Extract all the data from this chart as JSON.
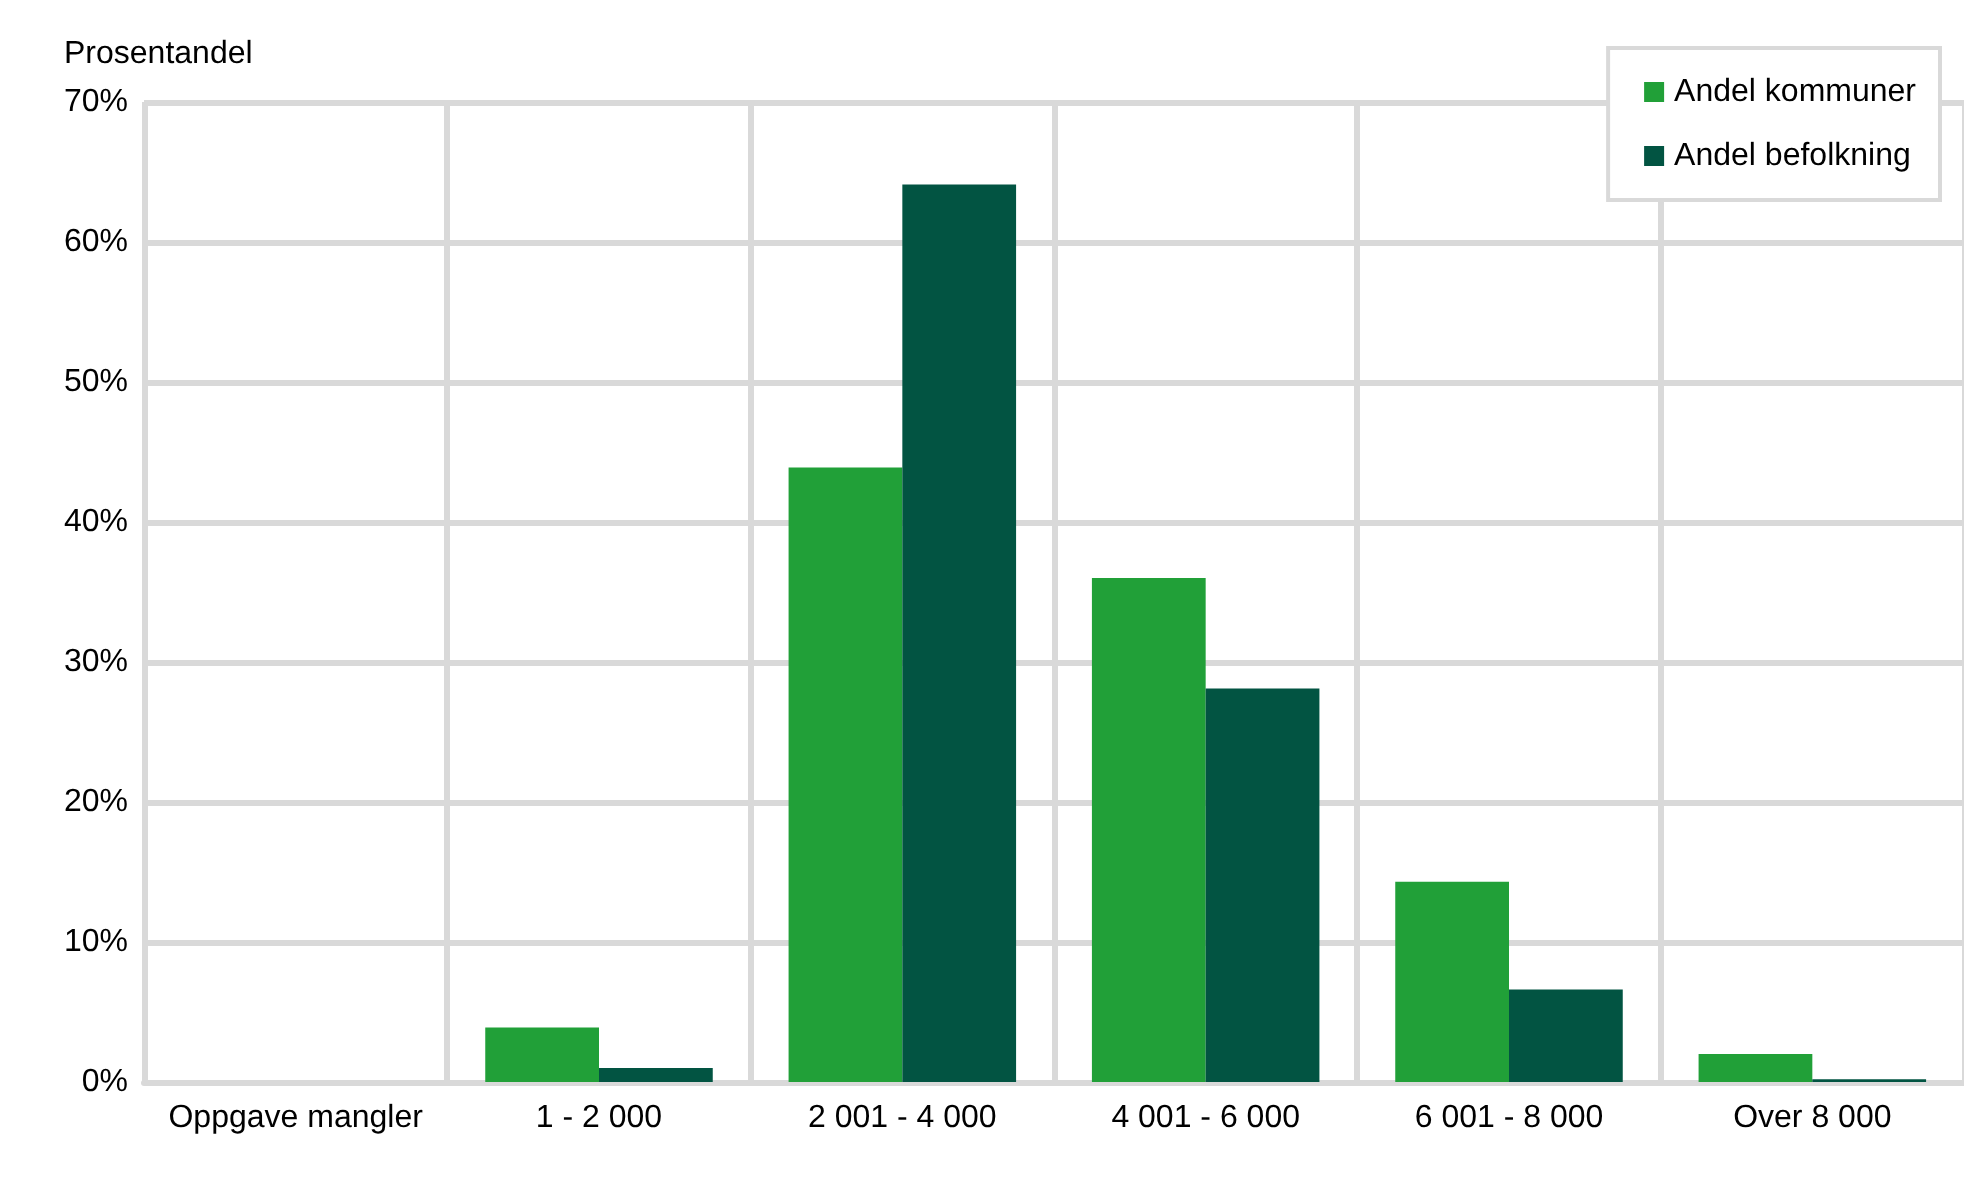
{
  "chart_data": {
    "type": "bar",
    "ylabel": "Prosentandel",
    "categories": [
      "Oppgave mangler",
      "1 - 2 000",
      "2 001 - 4 000",
      "4 001 - 6 000",
      "6 001 - 8 000",
      "Over 8 000"
    ],
    "series": [
      {
        "name": "Andel kommuner",
        "color": "#21a038",
        "values": [
          0,
          3.9,
          43.9,
          36.0,
          14.3,
          2.0
        ]
      },
      {
        "name": "Andel befolkning",
        "color": "#025442",
        "values": [
          0,
          1.0,
          64.1,
          28.1,
          6.6,
          0.2
        ]
      }
    ],
    "ylim": [
      0,
      70
    ],
    "yticks": [
      {
        "value": 0,
        "label": "0%"
      },
      {
        "value": 10,
        "label": "10%"
      },
      {
        "value": 20,
        "label": "20%"
      },
      {
        "value": 30,
        "label": "30%"
      },
      {
        "value": 40,
        "label": "40%"
      },
      {
        "value": 50,
        "label": "50%"
      },
      {
        "value": 60,
        "label": "60%"
      },
      {
        "value": 70,
        "label": "70%"
      }
    ],
    "grid": true,
    "legend": "top right"
  }
}
